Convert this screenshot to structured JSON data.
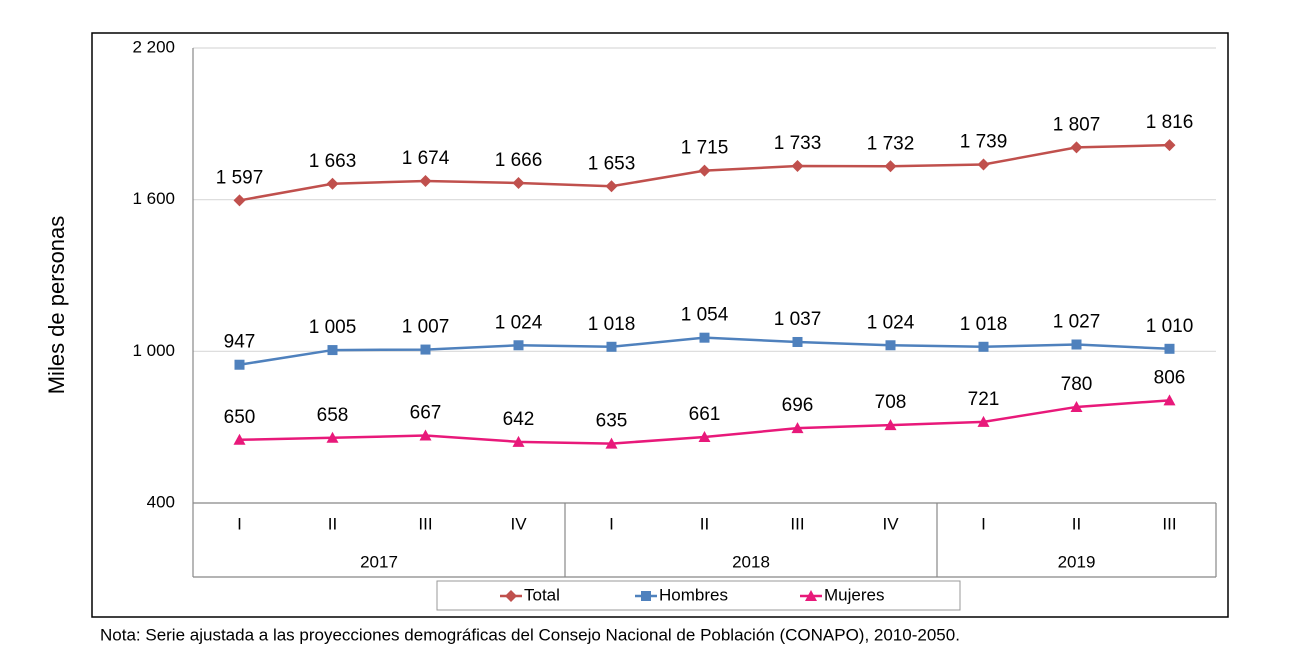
{
  "chart_data": {
    "type": "line",
    "y_axis_label": "Miles de personas",
    "note": "Nota: Serie ajustada a las proyecciones demográficas del Consejo Nacional de Población (CONAPO), 2010-2050.",
    "categories": [
      "I",
      "II",
      "III",
      "IV",
      "I",
      "II",
      "III",
      "IV",
      "I",
      "II",
      "III"
    ],
    "x_groups": [
      {
        "label": "2017",
        "size": 4
      },
      {
        "label": "2018",
        "size": 4
      },
      {
        "label": "2019",
        "size": 3
      }
    ],
    "ylim": [
      400,
      2200
    ],
    "yticks": [
      {
        "value": 400,
        "label": "400"
      },
      {
        "value": 1000,
        "label": "1 000"
      },
      {
        "value": 1600,
        "label": "1 600"
      },
      {
        "value": 2200,
        "label": "2 200"
      }
    ],
    "grid": true,
    "legend": "bottom",
    "series": [
      {
        "name": "Total",
        "color": "#c0504d",
        "marker": "diamond",
        "values": [
          1597,
          1663,
          1674,
          1666,
          1653,
          1715,
          1733,
          1732,
          1739,
          1807,
          1816
        ],
        "value_labels": [
          "1 597",
          "1 663",
          "1 674",
          "1 666",
          "1 653",
          "1 715",
          "1 733",
          "1 732",
          "1 739",
          "1 807",
          "1 816"
        ]
      },
      {
        "name": "Hombres",
        "color": "#4f81bd",
        "marker": "square",
        "values": [
          947,
          1005,
          1007,
          1024,
          1018,
          1054,
          1037,
          1024,
          1018,
          1027,
          1010
        ],
        "value_labels": [
          "947",
          "1 005",
          "1 007",
          "1 024",
          "1 018",
          "1 054",
          "1 037",
          "1 024",
          "1 018",
          "1 027",
          "1 010"
        ]
      },
      {
        "name": "Mujeres",
        "color": "#e8197a",
        "marker": "triangle",
        "values": [
          650,
          658,
          667,
          642,
          635,
          661,
          696,
          708,
          721,
          780,
          806
        ],
        "value_labels": [
          "650",
          "658",
          "667",
          "642",
          "635",
          "661",
          "696",
          "708",
          "721",
          "780",
          "806"
        ]
      }
    ]
  }
}
